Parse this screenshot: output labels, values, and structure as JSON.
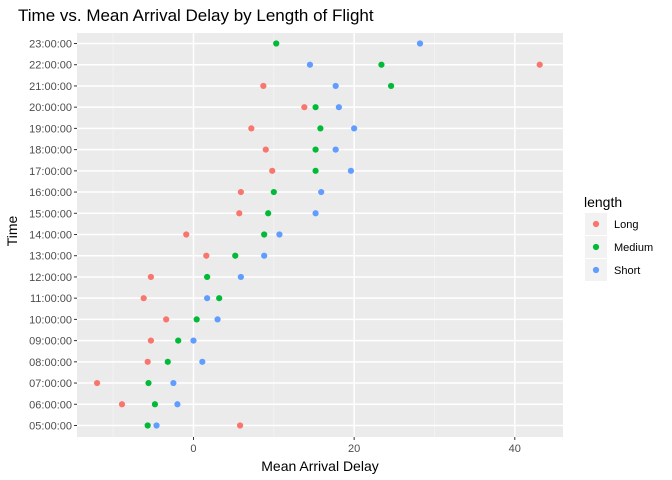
{
  "chart_data": {
    "type": "scatter",
    "title": "Time vs. Mean Arrival Delay by Length of Flight",
    "xlabel": "Mean Arrival Delay",
    "ylabel": "Time",
    "xlim": [
      -14.5,
      46
    ],
    "x_ticks": [
      0,
      20,
      40
    ],
    "y_categories": [
      "05:00:00",
      "06:00:00",
      "07:00:00",
      "08:00:00",
      "09:00:00",
      "10:00:00",
      "11:00:00",
      "12:00:00",
      "13:00:00",
      "14:00:00",
      "15:00:00",
      "16:00:00",
      "17:00:00",
      "18:00:00",
      "19:00:00",
      "20:00:00",
      "21:00:00",
      "22:00:00",
      "23:00:00"
    ],
    "grid": true,
    "legend": {
      "title": "length",
      "placement": "right"
    },
    "series": [
      {
        "name": "Long",
        "color": "#F8766D",
        "points": [
          {
            "y": "05:00:00",
            "x": 5.8
          },
          {
            "y": "06:00:00",
            "x": -8.9
          },
          {
            "y": "07:00:00",
            "x": -12.0
          },
          {
            "y": "08:00:00",
            "x": -5.7
          },
          {
            "y": "09:00:00",
            "x": -5.3
          },
          {
            "y": "10:00:00",
            "x": -3.4
          },
          {
            "y": "11:00:00",
            "x": -6.2
          },
          {
            "y": "12:00:00",
            "x": -5.3
          },
          {
            "y": "13:00:00",
            "x": 1.6
          },
          {
            "y": "14:00:00",
            "x": -0.9
          },
          {
            "y": "15:00:00",
            "x": 5.7
          },
          {
            "y": "16:00:00",
            "x": 5.9
          },
          {
            "y": "17:00:00",
            "x": 9.8
          },
          {
            "y": "18:00:00",
            "x": 9.0
          },
          {
            "y": "19:00:00",
            "x": 7.2
          },
          {
            "y": "20:00:00",
            "x": 13.8
          },
          {
            "y": "21:00:00",
            "x": 8.7
          },
          {
            "y": "22:00:00",
            "x": 43.1
          }
        ]
      },
      {
        "name": "Medium",
        "color": "#00BA38",
        "points": [
          {
            "y": "05:00:00",
            "x": -5.7
          },
          {
            "y": "06:00:00",
            "x": -4.8
          },
          {
            "y": "07:00:00",
            "x": -5.6
          },
          {
            "y": "08:00:00",
            "x": -3.2
          },
          {
            "y": "09:00:00",
            "x": -1.9
          },
          {
            "y": "10:00:00",
            "x": 0.4
          },
          {
            "y": "11:00:00",
            "x": 3.2
          },
          {
            "y": "12:00:00",
            "x": 1.7
          },
          {
            "y": "13:00:00",
            "x": 5.2
          },
          {
            "y": "14:00:00",
            "x": 8.8
          },
          {
            "y": "15:00:00",
            "x": 9.3
          },
          {
            "y": "16:00:00",
            "x": 10.0
          },
          {
            "y": "17:00:00",
            "x": 15.2
          },
          {
            "y": "18:00:00",
            "x": 15.2
          },
          {
            "y": "19:00:00",
            "x": 15.8
          },
          {
            "y": "20:00:00",
            "x": 15.2
          },
          {
            "y": "21:00:00",
            "x": 24.6
          },
          {
            "y": "22:00:00",
            "x": 23.4
          },
          {
            "y": "23:00:00",
            "x": 10.3
          }
        ]
      },
      {
        "name": "Short",
        "color": "#619CFF",
        "points": [
          {
            "y": "05:00:00",
            "x": -4.6
          },
          {
            "y": "06:00:00",
            "x": -2.0
          },
          {
            "y": "07:00:00",
            "x": -2.5
          },
          {
            "y": "08:00:00",
            "x": 1.1
          },
          {
            "y": "09:00:00",
            "x": 0.0
          },
          {
            "y": "10:00:00",
            "x": 3.0
          },
          {
            "y": "11:00:00",
            "x": 1.7
          },
          {
            "y": "12:00:00",
            "x": 5.9
          },
          {
            "y": "13:00:00",
            "x": 8.8
          },
          {
            "y": "14:00:00",
            "x": 10.7
          },
          {
            "y": "15:00:00",
            "x": 15.2
          },
          {
            "y": "16:00:00",
            "x": 15.9
          },
          {
            "y": "17:00:00",
            "x": 19.6
          },
          {
            "y": "18:00:00",
            "x": 17.7
          },
          {
            "y": "19:00:00",
            "x": 20.0
          },
          {
            "y": "20:00:00",
            "x": 18.1
          },
          {
            "y": "21:00:00",
            "x": 17.7
          },
          {
            "y": "22:00:00",
            "x": 14.5
          },
          {
            "y": "23:00:00",
            "x": 28.2
          }
        ]
      }
    ]
  }
}
